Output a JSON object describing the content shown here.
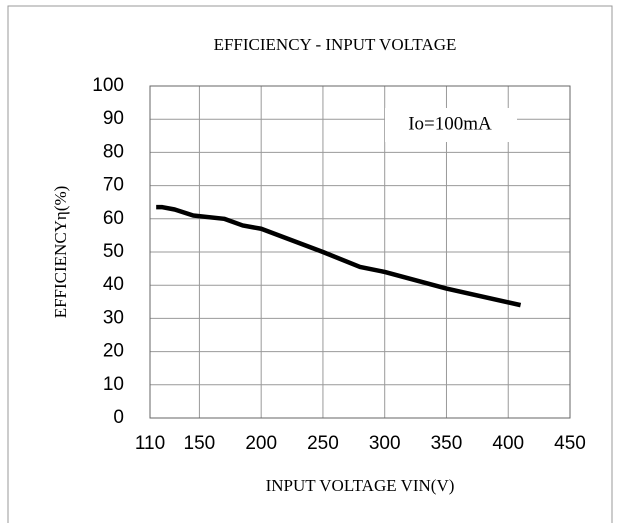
{
  "chart_data": {
    "type": "line",
    "title": "EFFICIENCY - INPUT VOLTAGE",
    "annotation": "Io=100mA",
    "x_label": "INPUT VOLTAGE VIN(V)",
    "y_label": "EFFICIENCYη(%)",
    "x": [
      115,
      120,
      130,
      145,
      170,
      185,
      200,
      250,
      280,
      300,
      350,
      410
    ],
    "series": [
      {
        "name": "Io=100mA",
        "color": "#000000",
        "values": [
          63.5,
          63.5,
          62.8,
          61,
          60,
          58,
          57,
          50,
          45.5,
          44,
          39,
          34
        ]
      }
    ],
    "xlim": [
      110,
      450
    ],
    "xticks": [
      110,
      150,
      200,
      250,
      300,
      350,
      400,
      450
    ],
    "ylim": [
      0,
      100
    ],
    "yticks": [
      0,
      10,
      20,
      30,
      40,
      50,
      60,
      70,
      80,
      90,
      100
    ],
    "grid": true
  }
}
